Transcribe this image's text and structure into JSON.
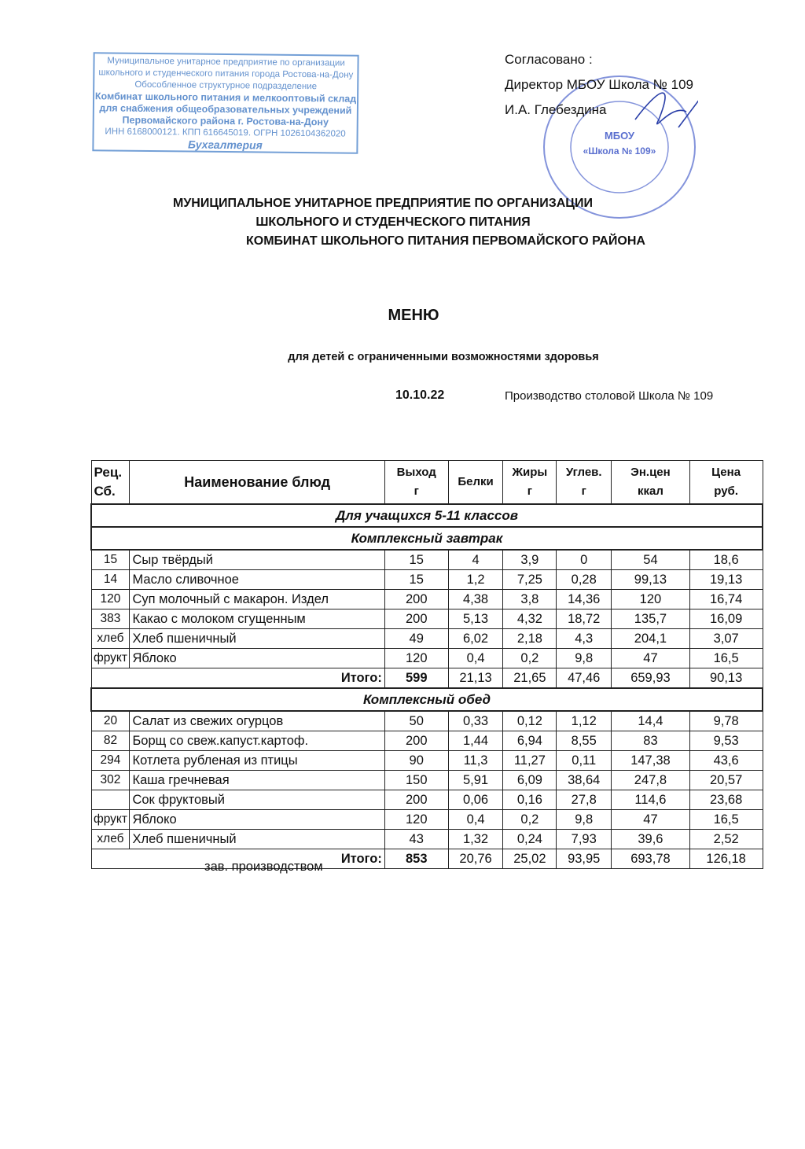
{
  "stamp_rect": {
    "lines": [
      "Муниципальное унитарное предприятие по организации",
      "школьного и студенческого питания города Ростова-на-Дону",
      "Обособленное структурное подразделение",
      "Комбинат школьного питания и мелкооптовый склад",
      "для снабжения общеобразовательных учреждений",
      "Первомайского района  г. Ростова-на-Дону",
      "ИНН 6168000121.  КПП 616645019.  ОГРН 1026104362020",
      "Бухгалтерия"
    ],
    "color": "#4a7fc6"
  },
  "approval": {
    "line1": "Согласовано :",
    "line2": "Директор МБОУ Школа № 109",
    "line3": "И.А. Глебездина"
  },
  "stamp_round": {
    "center_line1": "МБОУ",
    "center_line2": "«Школа № 109»",
    "color": "#5a6fcf"
  },
  "org": {
    "line1": "МУНИЦИПАЛЬНОЕ УНИТАРНОЕ ПРЕДПРИЯТИЕ ПО ОРГАНИЗАЦИИ",
    "line2": "ШКОЛЬНОГО И СТУДЕНЧЕСКОГО ПИТАНИЯ",
    "line3": "КОМБИНАТ ШКОЛЬНОГО ПИТАНИЯ ПЕРВОМАЙСКОГО  РАЙОНА"
  },
  "title": "МЕНЮ",
  "subtitle": "для детей с ограниченными возможностями здоровья",
  "date": "10.10.22",
  "production": "Производство столовой  Школа № 109",
  "table": {
    "headers": [
      [
        "Рец.",
        "Сб."
      ],
      [
        "Наименование блюд"
      ],
      [
        "Выход",
        "г"
      ],
      [
        "Белки",
        ""
      ],
      [
        "Жиры",
        "г"
      ],
      [
        "Углев.",
        "г"
      ],
      [
        "Эн.цен",
        "ккал"
      ],
      [
        "Цена",
        "руб."
      ]
    ],
    "group": "Для учащихся 5-11 классов",
    "sections": [
      {
        "title": "Комплексный  завтрак",
        "rows": [
          [
            "15",
            "Сыр твёрдый",
            "15",
            "4",
            "3,9",
            "0",
            "54",
            "18,6"
          ],
          [
            "14",
            "Масло сливочное",
            "15",
            "1,2",
            "7,25",
            "0,28",
            "99,13",
            "19,13"
          ],
          [
            "120",
            "Суп молочный с макарон. Издел",
            "200",
            "4,38",
            "3,8",
            "14,36",
            "120",
            "16,74"
          ],
          [
            "383",
            "Какао с молоком сгущенным",
            "200",
            "5,13",
            "4,32",
            "18,72",
            "135,7",
            "16,09"
          ],
          [
            "хлеб",
            "Хлеб пшеничный",
            "49",
            "6,02",
            "2,18",
            "4,3",
            "204,1",
            "3,07"
          ],
          [
            "фрукт",
            "Яблоко",
            "120",
            "0,4",
            "0,2",
            "9,8",
            "47",
            "16,5"
          ]
        ],
        "total": [
          "Итого:",
          "599",
          "21,13",
          "21,65",
          "47,46",
          "659,93",
          "90,13"
        ]
      },
      {
        "title": "Комплексный  обед",
        "rows": [
          [
            "20",
            "Салат из свежих огурцов",
            "50",
            "0,33",
            "0,12",
            "1,12",
            "14,4",
            "9,78"
          ],
          [
            "82",
            "Борщ со свеж.капуст.картоф.",
            "200",
            "1,44",
            "6,94",
            "8,55",
            "83",
            "9,53"
          ],
          [
            "294",
            "Котлета рубленая из птицы",
            "90",
            "11,3",
            "11,27",
            "0,11",
            "147,38",
            "43,6"
          ],
          [
            "302",
            "Каша гречневая",
            "150",
            "5,91",
            "6,09",
            "38,64",
            "247,8",
            "20,57"
          ],
          [
            "",
            "Сок фруктовый",
            "200",
            "0,06",
            "0,16",
            "27,8",
            "114,6",
            "23,68"
          ],
          [
            "фрукт",
            "Яблоко",
            "120",
            "0,4",
            "0,2",
            "9,8",
            "47",
            "16,5"
          ],
          [
            "хлеб",
            "Хлеб пшеничный",
            "43",
            "1,32",
            "0,24",
            "7,93",
            "39,6",
            "2,52"
          ]
        ],
        "total": [
          "Итого:",
          "853",
          "20,76",
          "25,02",
          "93,95",
          "693,78",
          "126,18"
        ]
      }
    ]
  },
  "footer": "зав. производством"
}
